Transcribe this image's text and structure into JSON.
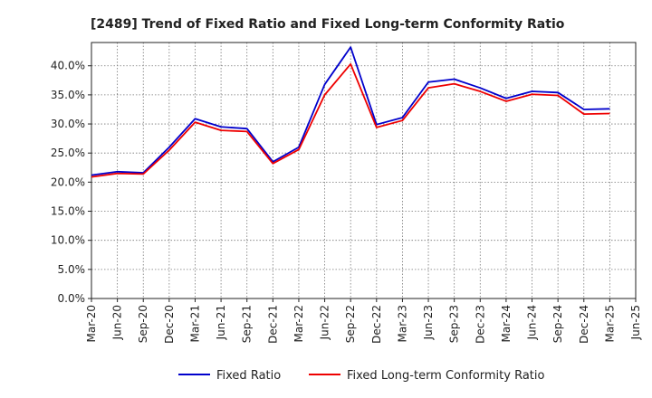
{
  "chart_data": {
    "type": "line",
    "title": "[2489]  Trend of Fixed Ratio and Fixed Long-term Conformity Ratio",
    "xlabel": "",
    "ylabel": "",
    "x": [
      "Mar-20",
      "Jun-20",
      "Sep-20",
      "Dec-20",
      "Mar-21",
      "Jun-21",
      "Sep-21",
      "Dec-21",
      "Mar-22",
      "Jun-22",
      "Sep-22",
      "Dec-22",
      "Mar-23",
      "Jun-23",
      "Sep-23",
      "Dec-23",
      "Mar-24",
      "Jun-24",
      "Sep-24",
      "Dec-24",
      "Mar-25",
      "Jun-25"
    ],
    "y_ticks": [
      "0.0%",
      "5.0%",
      "10.0%",
      "15.0%",
      "20.0%",
      "25.0%",
      "30.0%",
      "35.0%",
      "40.0%"
    ],
    "ylim": [
      0,
      44
    ],
    "grid": true,
    "legend_position": "bottom",
    "series": [
      {
        "name": "Fixed Ratio",
        "color": "#0000cc",
        "values": [
          21.2,
          21.8,
          21.6,
          26.0,
          30.9,
          29.5,
          29.2,
          23.5,
          26.0,
          36.8,
          43.2,
          29.9,
          31.1,
          37.2,
          37.7,
          36.2,
          34.4,
          35.6,
          35.4,
          32.5,
          32.6,
          null
        ]
      },
      {
        "name": "Fixed Long-term Conformity Ratio",
        "color": "#ee0000",
        "values": [
          20.9,
          21.5,
          21.4,
          25.5,
          30.3,
          28.9,
          28.7,
          23.2,
          25.6,
          35.0,
          40.3,
          29.4,
          30.6,
          36.2,
          36.9,
          35.6,
          33.9,
          35.1,
          34.9,
          31.7,
          31.8,
          null
        ]
      }
    ]
  }
}
